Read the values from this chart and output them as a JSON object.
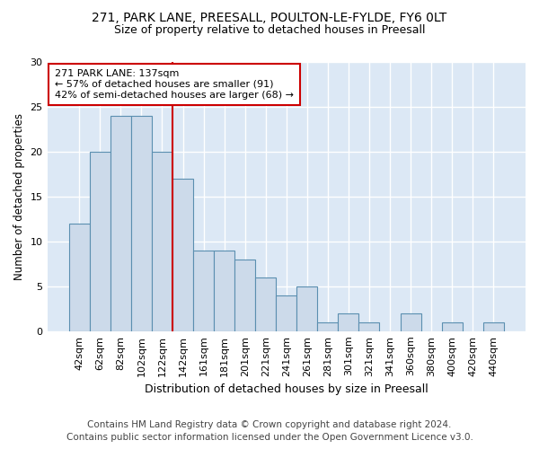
{
  "title1": "271, PARK LANE, PREESALL, POULTON-LE-FYLDE, FY6 0LT",
  "title2": "Size of property relative to detached houses in Preesall",
  "xlabel": "Distribution of detached houses by size in Preesall",
  "ylabel": "Number of detached properties",
  "footer1": "Contains HM Land Registry data © Crown copyright and database right 2024.",
  "footer2": "Contains public sector information licensed under the Open Government Licence v3.0.",
  "bar_labels": [
    "42sqm",
    "62sqm",
    "82sqm",
    "102sqm",
    "122sqm",
    "142sqm",
    "161sqm",
    "181sqm",
    "201sqm",
    "221sqm",
    "241sqm",
    "261sqm",
    "281sqm",
    "301sqm",
    "321sqm",
    "341sqm",
    "360sqm",
    "380sqm",
    "400sqm",
    "420sqm",
    "440sqm"
  ],
  "bar_values": [
    12,
    20,
    24,
    24,
    20,
    17,
    9,
    9,
    8,
    6,
    4,
    5,
    1,
    2,
    1,
    0,
    2,
    0,
    1,
    0,
    1
  ],
  "bar_color": "#ccdaea",
  "bar_edgecolor": "#5b8fb0",
  "vline_color": "#cc0000",
  "annotation_text": "271 PARK LANE: 137sqm\n← 57% of detached houses are smaller (91)\n42% of semi-detached houses are larger (68) →",
  "annotation_box_color": "#ffffff",
  "annotation_box_edgecolor": "#cc0000",
  "ylim": [
    0,
    30
  ],
  "yticks": [
    0,
    5,
    10,
    15,
    20,
    25,
    30
  ],
  "figure_background": "#ffffff",
  "axes_background": "#dce8f5",
  "grid_color": "#ffffff",
  "title1_fontsize": 10,
  "title2_fontsize": 9,
  "xlabel_fontsize": 9,
  "ylabel_fontsize": 8.5,
  "footer_fontsize": 7.5,
  "tick_fontsize": 8
}
